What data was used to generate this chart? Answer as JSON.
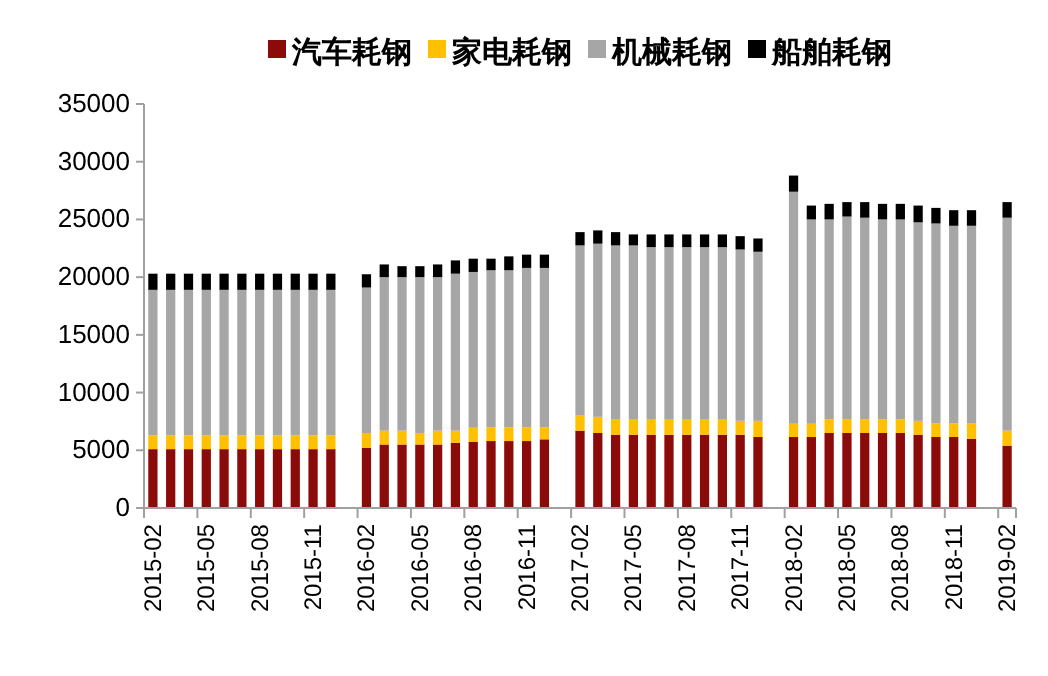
{
  "chart_data": {
    "type": "bar",
    "stacked": true,
    "legend": "top",
    "categories": [
      "2015-02",
      null,
      null,
      "2015-05",
      null,
      null,
      "2015-08",
      null,
      null,
      "2015-11",
      null,
      null,
      "2016-02",
      null,
      null,
      "2016-05",
      null,
      null,
      "2016-08",
      null,
      null,
      "2016-11",
      null,
      null,
      "2017-02",
      null,
      null,
      "2017-05",
      null,
      null,
      "2017-08",
      null,
      null,
      "2017-11",
      null,
      null,
      "2018-02",
      null,
      null,
      "2018-05",
      null,
      null,
      "2018-08",
      null,
      null,
      "2018-11",
      null,
      null,
      "2019-02"
    ],
    "ylim": [
      0,
      35000
    ],
    "yticks": [
      0,
      5000,
      10000,
      15000,
      20000,
      25000,
      30000,
      35000
    ],
    "series": [
      {
        "name": "汽车耗钢",
        "color": "#8b0a0a",
        "values": [
          5100,
          5100,
          5100,
          5100,
          5100,
          5100,
          5100,
          5100,
          5100,
          5100,
          5100,
          null,
          5200,
          5500,
          5500,
          5500,
          5500,
          5650,
          5750,
          5800,
          5800,
          5800,
          5950,
          null,
          6700,
          6500,
          6350,
          6350,
          6350,
          6350,
          6350,
          6350,
          6350,
          6350,
          6150,
          null,
          6150,
          6150,
          6500,
          6500,
          6500,
          6500,
          6500,
          6350,
          6150,
          6150,
          6000,
          null,
          5400
        ]
      },
      {
        "name": "家电耗钢",
        "color": "#ffc000",
        "values": [
          1200,
          1200,
          1200,
          1200,
          1200,
          1200,
          1200,
          1200,
          1200,
          1200,
          1200,
          null,
          1300,
          1200,
          1200,
          1000,
          1200,
          1050,
          1200,
          1200,
          1200,
          1200,
          1050,
          null,
          1350,
          1400,
          1300,
          1300,
          1300,
          1300,
          1300,
          1300,
          1300,
          1200,
          1400,
          null,
          1150,
          1150,
          1200,
          1200,
          1200,
          1200,
          1200,
          1200,
          1200,
          1200,
          1350,
          null,
          1300
        ]
      },
      {
        "name": "机械耗钢",
        "color": "#a6a6a6",
        "values": [
          12600,
          12600,
          12600,
          12600,
          12600,
          12600,
          12600,
          12600,
          12600,
          12600,
          12600,
          null,
          12600,
          13300,
          13300,
          13500,
          13300,
          13600,
          13500,
          13600,
          13600,
          13800,
          13800,
          null,
          14700,
          15000,
          15100,
          15100,
          14950,
          14950,
          14950,
          14950,
          14950,
          14850,
          14650,
          null,
          20100,
          17700,
          17300,
          17550,
          17450,
          17300,
          17300,
          17200,
          17300,
          17100,
          17100,
          null,
          18450
        ]
      },
      {
        "name": "船舶耗钢",
        "color": "#000000",
        "values": [
          1400,
          1400,
          1400,
          1400,
          1400,
          1400,
          1400,
          1400,
          1400,
          1400,
          1400,
          null,
          1150,
          1100,
          950,
          950,
          1100,
          1150,
          1150,
          1000,
          1200,
          1150,
          1150,
          null,
          1150,
          1150,
          1150,
          950,
          1100,
          1100,
          1100,
          1100,
          1100,
          1150,
          1150,
          null,
          1400,
          1200,
          1350,
          1250,
          1350,
          1350,
          1350,
          1450,
          1350,
          1350,
          1350,
          null,
          1350
        ]
      }
    ]
  }
}
